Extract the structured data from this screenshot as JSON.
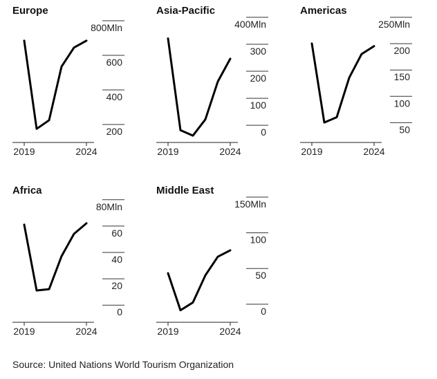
{
  "chart_data": [
    {
      "type": "line",
      "title": "Europe",
      "x": [
        2019,
        2020,
        2021,
        2022,
        2023,
        2024
      ],
      "values": [
        745,
        235,
        285,
        595,
        705,
        745
      ],
      "ylim": [
        180,
        820
      ],
      "yticks": [
        200,
        400,
        600,
        800
      ],
      "ytick_labels": [
        "200",
        "400",
        "600",
        "800Mln"
      ],
      "xtick_labels": [
        "2019",
        "2024"
      ],
      "series_color": "#000000"
    },
    {
      "type": "line",
      "title": "Asia-Pacific",
      "x": [
        2019,
        2020,
        2021,
        2022,
        2023,
        2024
      ],
      "values": [
        360,
        20,
        0,
        60,
        200,
        285
      ],
      "ylim": [
        -10,
        400
      ],
      "yticks": [
        0,
        100,
        200,
        300,
        400
      ],
      "ytick_labels": [
        "0",
        "100",
        "200",
        "300",
        "400Mln"
      ],
      "xtick_labels": [
        "2019",
        "2024"
      ],
      "series_color": "#000000"
    },
    {
      "type": "line",
      "title": "Americas",
      "x": [
        2019,
        2020,
        2021,
        2022,
        2023,
        2024
      ],
      "values": [
        220,
        70,
        80,
        155,
        200,
        215
      ],
      "ylim": [
        40,
        250
      ],
      "yticks": [
        50,
        100,
        150,
        200,
        250
      ],
      "ytick_labels": [
        "50",
        "100",
        "150",
        "200",
        "250Mln"
      ],
      "xtick_labels": [
        "2019",
        "2024"
      ],
      "series_color": "#000000"
    },
    {
      "type": "line",
      "title": "Africa",
      "x": [
        2019,
        2020,
        2021,
        2022,
        2023,
        2024
      ],
      "values": [
        69,
        19,
        20,
        45,
        62,
        70
      ],
      "ylim": [
        -2,
        82
      ],
      "yticks": [
        0,
        20,
        40,
        60,
        80
      ],
      "ytick_labels": [
        "0",
        "20",
        "40",
        "60",
        "80Mln"
      ],
      "xtick_labels": [
        "2019",
        "2024"
      ],
      "series_color": "#000000"
    },
    {
      "type": "line",
      "title": "Middle East",
      "x": [
        2019,
        2020,
        2021,
        2022,
        2023,
        2024
      ],
      "values": [
        58,
        6,
        17,
        55,
        81,
        90
      ],
      "ylim": [
        -5,
        150
      ],
      "yticks": [
        0,
        50,
        100,
        150
      ],
      "ytick_labels": [
        "0",
        "50",
        "100",
        "150Mln"
      ],
      "xtick_labels": [
        "2019",
        "2024"
      ],
      "series_color": "#000000"
    }
  ],
  "footer": {
    "source": "Source: United Nations World Tourism Organization"
  }
}
